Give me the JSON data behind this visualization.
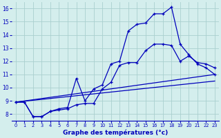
{
  "xlabel": "Graphe des températures (°c)",
  "bg_color": "#d4eeed",
  "grid_color": "#aacfcf",
  "line_color": "#0000bb",
  "xlim": [
    -0.5,
    23.5
  ],
  "ylim": [
    7.5,
    16.5
  ],
  "xticks": [
    0,
    1,
    2,
    3,
    4,
    5,
    6,
    7,
    8,
    9,
    10,
    11,
    12,
    13,
    14,
    15,
    16,
    17,
    18,
    19,
    20,
    21,
    22,
    23
  ],
  "yticks": [
    8,
    9,
    10,
    11,
    12,
    13,
    14,
    15,
    16
  ],
  "line1_x": [
    0,
    1,
    2,
    3,
    4,
    5,
    6,
    7,
    8,
    9,
    10,
    11,
    12,
    13,
    14,
    15,
    16,
    17,
    18,
    19,
    20,
    21,
    22,
    23
  ],
  "line1_y": [
    8.9,
    8.9,
    7.8,
    7.8,
    8.2,
    8.4,
    8.5,
    10.7,
    9.0,
    9.9,
    10.2,
    11.8,
    12.0,
    14.3,
    14.8,
    14.9,
    15.6,
    15.6,
    16.1,
    13.3,
    12.5,
    11.8,
    11.5,
    11.0
  ],
  "line2_x": [
    0,
    1,
    2,
    3,
    4,
    5,
    6,
    7,
    8,
    9,
    10,
    11,
    12,
    13,
    14,
    15,
    16,
    17,
    18,
    19,
    20,
    21,
    22,
    23
  ],
  "line2_y": [
    8.9,
    8.9,
    7.8,
    7.8,
    8.2,
    8.3,
    8.4,
    8.7,
    8.8,
    8.8,
    9.9,
    10.4,
    11.7,
    11.9,
    11.9,
    12.8,
    13.3,
    13.3,
    13.2,
    12.0,
    12.4,
    11.9,
    11.8,
    11.5
  ],
  "line3_x": [
    0,
    23
  ],
  "line3_y": [
    8.9,
    11.0
  ],
  "line4_x": [
    0,
    23
  ],
  "line4_y": [
    8.9,
    10.5
  ]
}
